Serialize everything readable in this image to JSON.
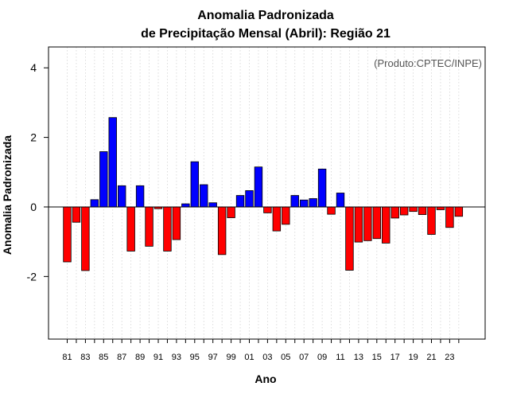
{
  "chart_data": {
    "type": "bar",
    "title_line1": "Anomalia Padronizada",
    "title_line2": "de Precipitação Mensal (Abril): Região 21",
    "xlabel": "Ano",
    "ylabel": "Anomalia Padronizada",
    "note": "(Produto:CPTEC/INPE)",
    "ylim": [
      -3.8,
      4.6
    ],
    "yticks": [
      -2,
      0,
      2,
      4
    ],
    "ytick_labels": [
      "-2",
      "0",
      "2",
      "4"
    ],
    "grid": "vertical dotted",
    "colors": {
      "positive": "#0000ff",
      "negative": "#ff0000",
      "edge": "#000000",
      "grid": "#d3d3d3"
    },
    "categories": [
      "81",
      "82",
      "83",
      "84",
      "85",
      "86",
      "87",
      "88",
      "89",
      "90",
      "91",
      "92",
      "93",
      "94",
      "95",
      "96",
      "97",
      "98",
      "99",
      "00",
      "01",
      "02",
      "03",
      "04",
      "05",
      "06",
      "07",
      "08",
      "09",
      "10",
      "11",
      "12",
      "13",
      "14",
      "15",
      "16",
      "17",
      "18",
      "19",
      "20",
      "21",
      "22",
      "23",
      "24"
    ],
    "xtick_labels": [
      "81",
      "83",
      "85",
      "87",
      "89",
      "91",
      "93",
      "95",
      "97",
      "99",
      "01",
      "03",
      "05",
      "07",
      "09",
      "11",
      "13",
      "15",
      "17",
      "19",
      "21",
      "23"
    ],
    "values": [
      -1.58,
      -0.44,
      -1.83,
      0.21,
      1.59,
      2.57,
      0.61,
      -1.27,
      0.61,
      -1.13,
      -0.05,
      -1.27,
      -0.94,
      0.09,
      1.3,
      0.64,
      0.12,
      -1.37,
      -0.31,
      0.33,
      0.47,
      1.15,
      -0.17,
      -0.69,
      -0.5,
      0.33,
      0.2,
      0.24,
      1.09,
      -0.21,
      0.4,
      -1.82,
      -1.01,
      -0.97,
      -0.91,
      -1.04,
      -0.32,
      -0.23,
      -0.13,
      -0.22,
      -0.79,
      -0.08,
      -0.59,
      -0.27
    ]
  }
}
